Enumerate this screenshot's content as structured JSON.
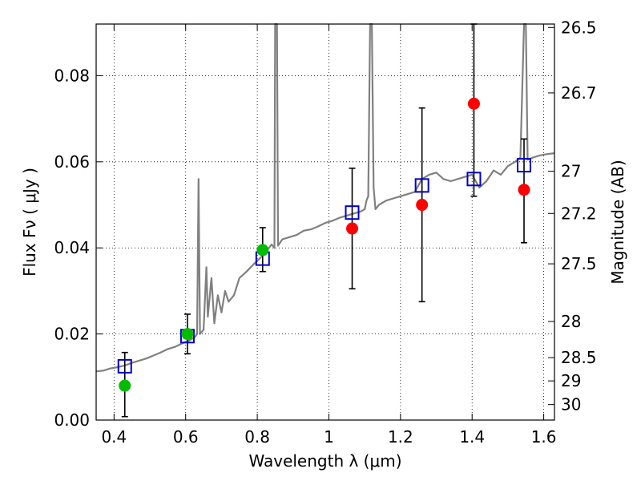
{
  "chart_data": {
    "type": "scatter",
    "xlabel": "Wavelength  λ (μm)",
    "ylabel": "Flux  Fν  ( μJy )",
    "y2label": "Magnitude (AB)",
    "xlim": [
      0.35,
      1.63
    ],
    "ylim": [
      0.0,
      0.092
    ],
    "grid": true,
    "x_ticks": [
      0.4,
      0.6,
      0.8,
      1.0,
      1.2,
      1.4,
      1.6
    ],
    "x_tick_labels": [
      "0.4",
      "0.6",
      "0.8",
      "1",
      "1.2",
      "1.4",
      "1.6"
    ],
    "y_ticks": [
      0.0,
      0.02,
      0.04,
      0.06,
      0.08
    ],
    "y_tick_labels": [
      "0.00",
      "0.02",
      "0.04",
      "0.06",
      "0.08"
    ],
    "y2_ticks": [
      {
        "label": "26.5",
        "flux": 0.0912
      },
      {
        "label": "26.7",
        "flux": 0.076
      },
      {
        "label": "27",
        "flux": 0.0578
      },
      {
        "label": "27.2",
        "flux": 0.048
      },
      {
        "label": "27.5",
        "flux": 0.0363
      },
      {
        "label": "28",
        "flux": 0.0229
      },
      {
        "label": "28.5",
        "flux": 0.0145
      },
      {
        "label": "29",
        "flux": 0.0091
      },
      {
        "label": "30",
        "flux": 0.0036
      }
    ],
    "series": [
      {
        "color": "#808080",
        "style": "line",
        "points": [
          [
            0.35,
            0.0113
          ],
          [
            0.37,
            0.0115
          ],
          [
            0.39,
            0.012
          ],
          [
            0.41,
            0.0123
          ],
          [
            0.43,
            0.0127
          ],
          [
            0.45,
            0.0133
          ],
          [
            0.47,
            0.0138
          ],
          [
            0.49,
            0.0143
          ],
          [
            0.51,
            0.015
          ],
          [
            0.53,
            0.0157
          ],
          [
            0.55,
            0.0165
          ],
          [
            0.57,
            0.017
          ],
          [
            0.59,
            0.0178
          ],
          [
            0.61,
            0.0185
          ],
          [
            0.625,
            0.0192
          ],
          [
            0.632,
            0.02
          ],
          [
            0.636,
            0.056
          ],
          [
            0.64,
            0.02
          ],
          [
            0.65,
            0.021
          ],
          [
            0.658,
            0.0355
          ],
          [
            0.662,
            0.024
          ],
          [
            0.672,
            0.033
          ],
          [
            0.68,
            0.0225
          ],
          [
            0.69,
            0.029
          ],
          [
            0.7,
            0.025
          ],
          [
            0.71,
            0.03
          ],
          [
            0.72,
            0.0275
          ],
          [
            0.735,
            0.029
          ],
          [
            0.75,
            0.033
          ],
          [
            0.77,
            0.0345
          ],
          [
            0.79,
            0.0362
          ],
          [
            0.81,
            0.0378
          ],
          [
            0.825,
            0.0392
          ],
          [
            0.84,
            0.0408
          ],
          [
            0.848,
            0.04
          ],
          [
            0.85,
            0.093
          ],
          [
            0.855,
            0.093
          ],
          [
            0.858,
            0.0405
          ],
          [
            0.87,
            0.042
          ],
          [
            0.89,
            0.0425
          ],
          [
            0.91,
            0.043
          ],
          [
            0.93,
            0.044
          ],
          [
            0.95,
            0.0443
          ],
          [
            0.97,
            0.045
          ],
          [
            0.99,
            0.0458
          ],
          [
            1.01,
            0.0463
          ],
          [
            1.03,
            0.047
          ],
          [
            1.05,
            0.0475
          ],
          [
            1.07,
            0.048
          ],
          [
            1.09,
            0.0485
          ],
          [
            1.1,
            0.049
          ],
          [
            1.105,
            0.051
          ],
          [
            1.11,
            0.052
          ],
          [
            1.115,
            0.093
          ],
          [
            1.12,
            0.093
          ],
          [
            1.125,
            0.054
          ],
          [
            1.13,
            0.049
          ],
          [
            1.14,
            0.05
          ],
          [
            1.16,
            0.051
          ],
          [
            1.18,
            0.0515
          ],
          [
            1.2,
            0.052
          ],
          [
            1.22,
            0.0525
          ],
          [
            1.24,
            0.053
          ],
          [
            1.26,
            0.056
          ],
          [
            1.28,
            0.057
          ],
          [
            1.3,
            0.0575
          ],
          [
            1.32,
            0.056
          ],
          [
            1.34,
            0.0555
          ],
          [
            1.36,
            0.056
          ],
          [
            1.38,
            0.0565
          ],
          [
            1.4,
            0.057
          ],
          [
            1.42,
            0.054
          ],
          [
            1.44,
            0.0555
          ],
          [
            1.46,
            0.058
          ],
          [
            1.48,
            0.057
          ],
          [
            1.5,
            0.059
          ],
          [
            1.52,
            0.06
          ],
          [
            1.535,
            0.061
          ],
          [
            1.545,
            0.093
          ],
          [
            1.55,
            0.093
          ],
          [
            1.555,
            0.0605
          ],
          [
            1.57,
            0.061
          ],
          [
            1.59,
            0.0615
          ],
          [
            1.61,
            0.0618
          ],
          [
            1.63,
            0.062
          ]
        ]
      },
      {
        "color": "#0000cc",
        "style": "open-square",
        "points": [
          [
            0.43,
            0.0125
          ],
          [
            0.605,
            0.0195
          ],
          [
            0.815,
            0.0375
          ],
          [
            1.065,
            0.0482
          ],
          [
            1.26,
            0.0545
          ],
          [
            1.405,
            0.056
          ],
          [
            1.545,
            0.0592
          ]
        ]
      },
      {
        "color": "#00bb00",
        "style": "filled-circle",
        "points": [
          [
            0.43,
            0.008
          ],
          [
            0.605,
            0.02
          ],
          [
            0.815,
            0.0395
          ]
        ]
      },
      {
        "color": "#ff0000",
        "style": "filled-circle",
        "points": [
          [
            1.065,
            0.0445
          ],
          [
            1.26,
            0.05
          ],
          [
            1.405,
            0.0735
          ],
          [
            1.545,
            0.0535
          ]
        ]
      },
      {
        "color": "#000000",
        "style": "errorbar",
        "points": [
          [
            0.43,
            0.0008,
            0.0157
          ],
          [
            0.605,
            0.0154,
            0.0246
          ],
          [
            0.815,
            0.0345,
            0.0447
          ],
          [
            1.065,
            0.0305,
            0.0585
          ],
          [
            1.26,
            0.0275,
            0.0725
          ],
          [
            1.405,
            0.052,
            0.092
          ],
          [
            1.545,
            0.0412,
            0.0653
          ]
        ]
      }
    ]
  }
}
